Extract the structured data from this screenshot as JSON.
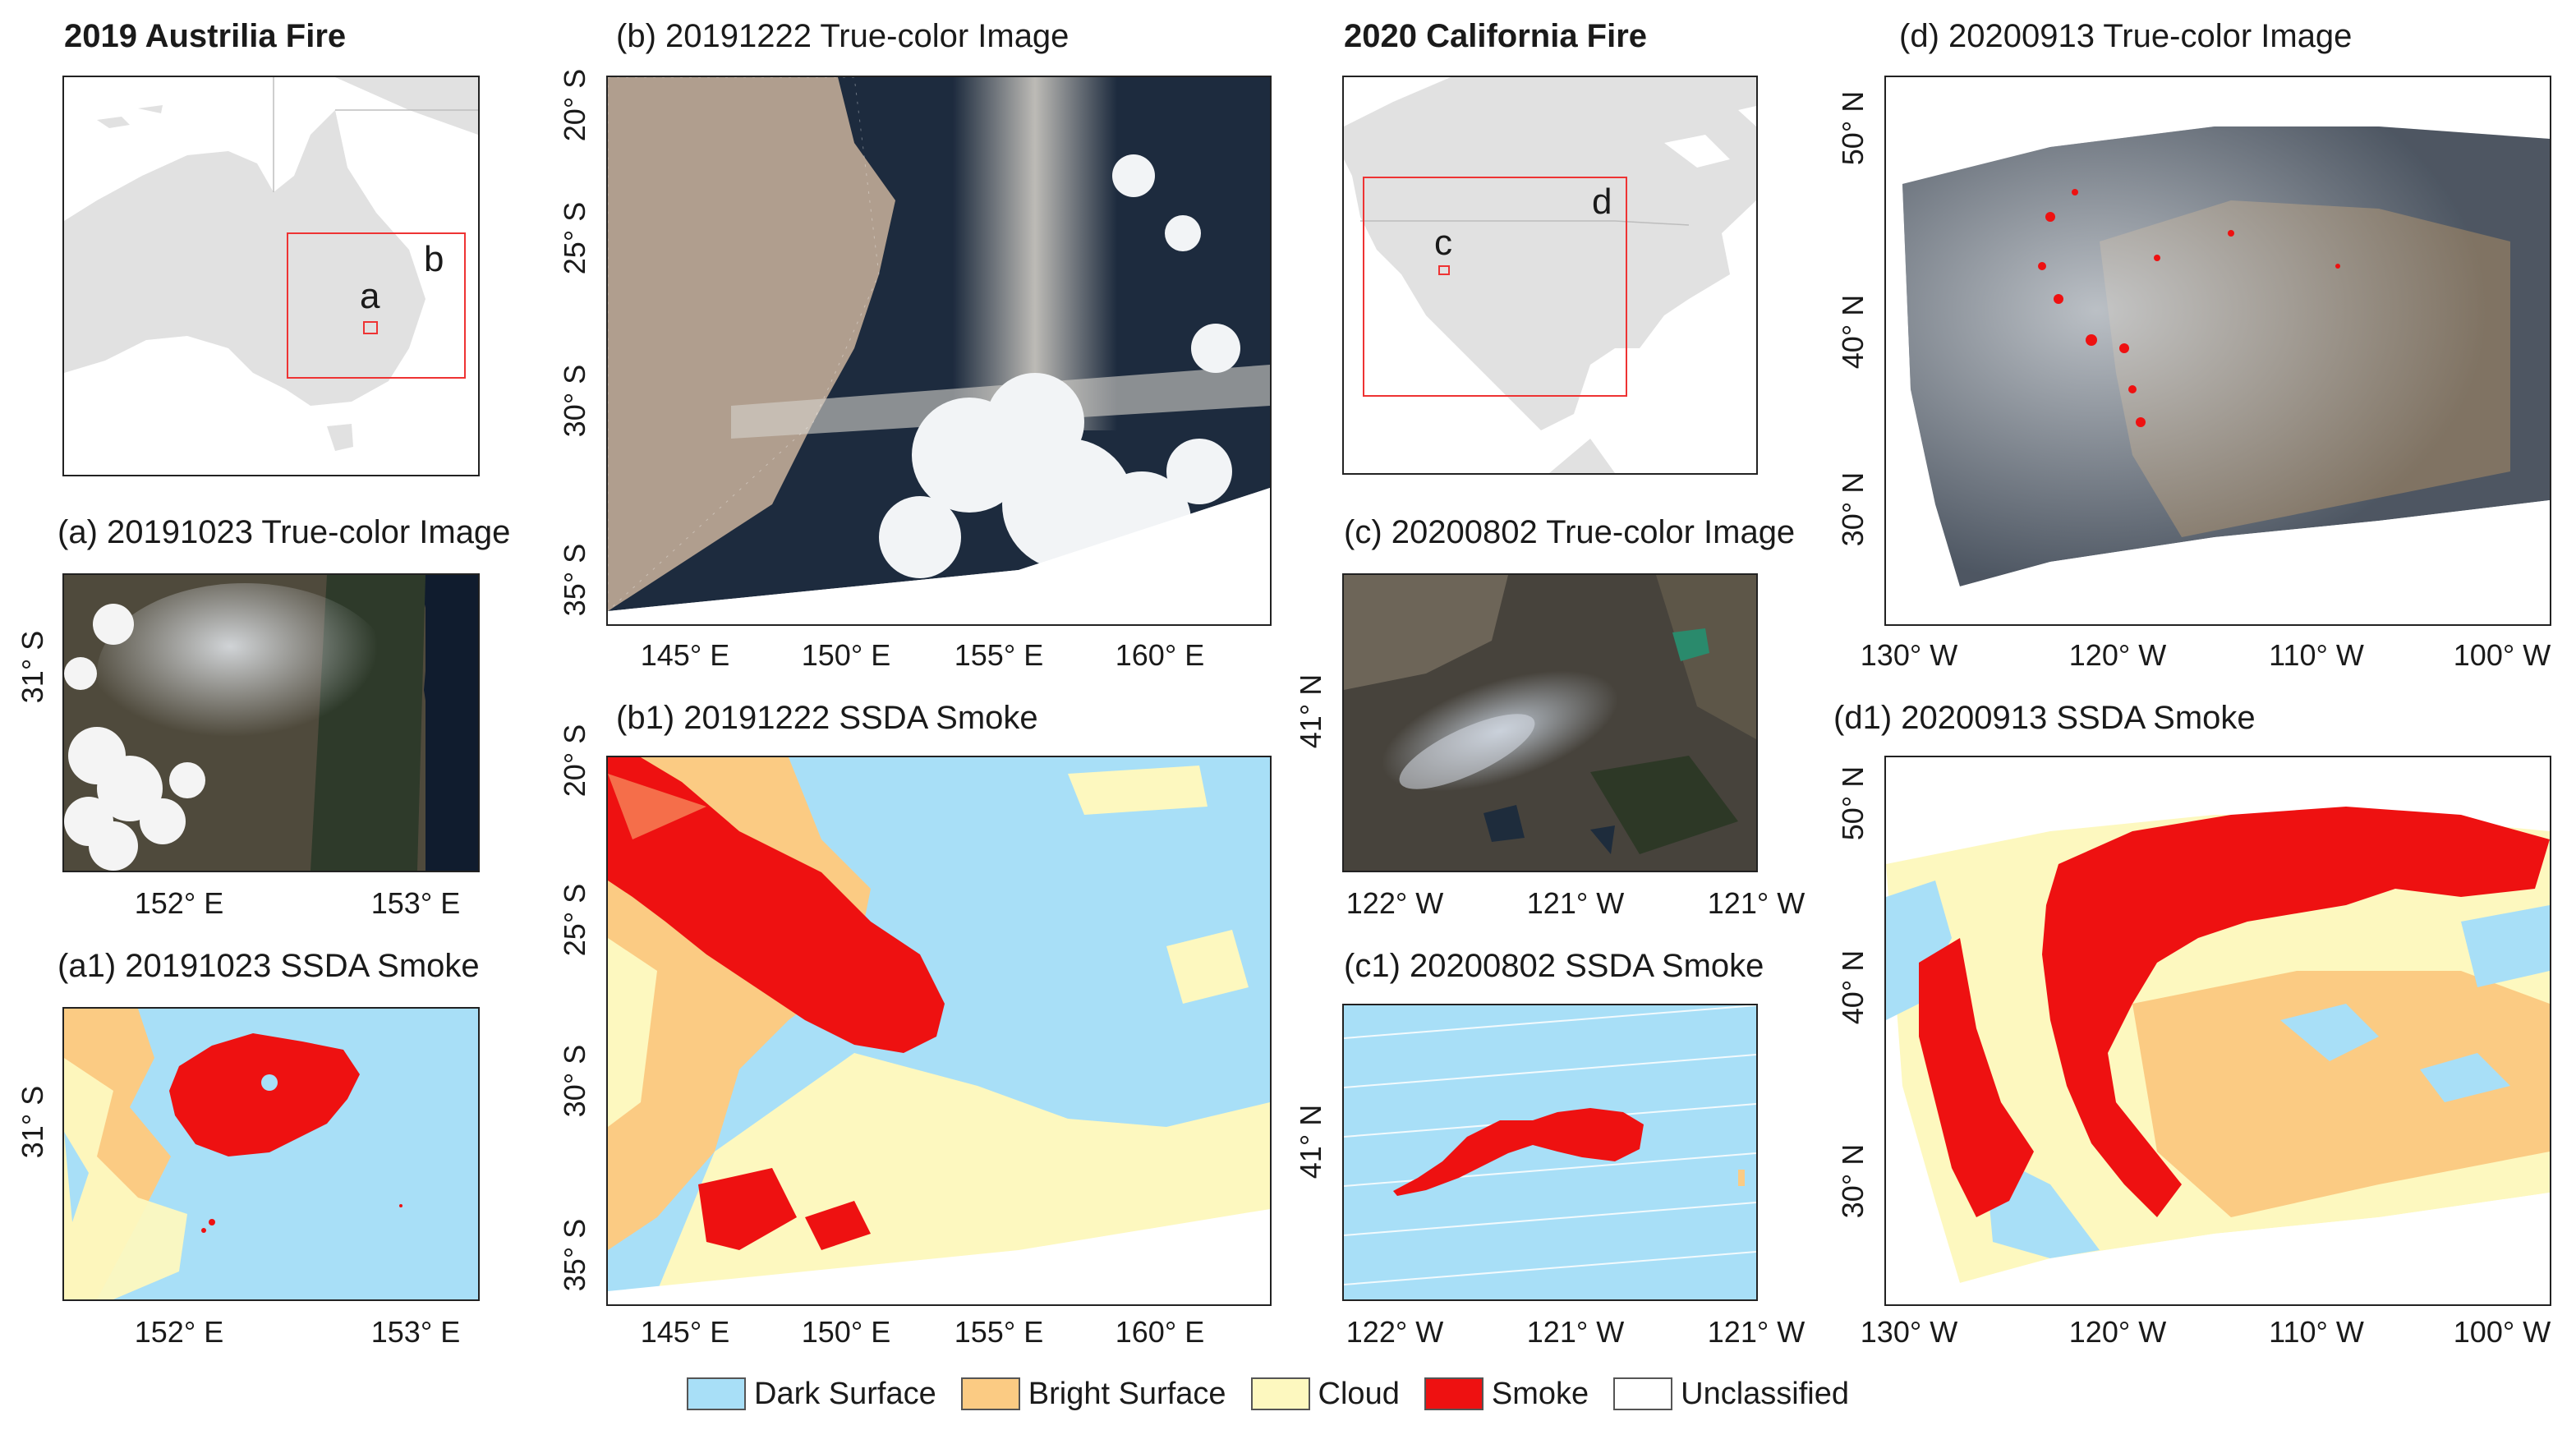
{
  "titles": {
    "australia": "2019 Austrilia Fire",
    "california": "2020 California Fire",
    "a": "(a) 20191023 True-color Image",
    "a1": "(a1) 20191023 SSDA Smoke",
    "b": "(b) 20191222 True-color Image",
    "b1": "(b1) 20191222 SSDA Smoke",
    "c": "(c) 20200802 True-color Image",
    "c1": "(c1) 20200802 SSDA Smoke",
    "d": "(d) 20200913 True-color Image",
    "d1": "(d1) 20200913 SSDA Smoke"
  },
  "locator_labels": {
    "a": "a",
    "b": "b",
    "c": "c",
    "d": "d"
  },
  "ticks": {
    "a_x": [
      "152° E",
      "153° E"
    ],
    "a_y": [
      "31° S"
    ],
    "b_x": [
      "145° E",
      "150° E",
      "155° E",
      "160° E"
    ],
    "b_y": [
      "20° S",
      "25° S",
      "30° S",
      "35° S"
    ],
    "c_x": [
      "122° W",
      "121° W",
      "121° W"
    ],
    "c_y": [
      "41° N"
    ],
    "d_x": [
      "130° W",
      "120° W",
      "110° W",
      "100° W"
    ],
    "d_y": [
      "50° N",
      "40° N",
      "30° N"
    ]
  },
  "legend": [
    {
      "label": "Dark Surface",
      "color": "#a8dff7"
    },
    {
      "label": "Bright Surface",
      "color": "#fbcb83"
    },
    {
      "label": "Cloud",
      "color": "#fdf8bf"
    },
    {
      "label": "Smoke",
      "color": "#ee1111"
    },
    {
      "label": "Unclassified",
      "color": "#ffffff"
    }
  ],
  "colors": {
    "land": "#e1e1e1",
    "frame_box": "#ee3333",
    "dark_surface": "#a8dff7",
    "bright_surface": "#fbcb83",
    "cloud": "#fdf8bf",
    "smoke": "#ee1111",
    "true_color_land": "#5a5043",
    "true_color_ocean": "#1d2b3e",
    "true_color_cloud": "#e8eaec"
  }
}
